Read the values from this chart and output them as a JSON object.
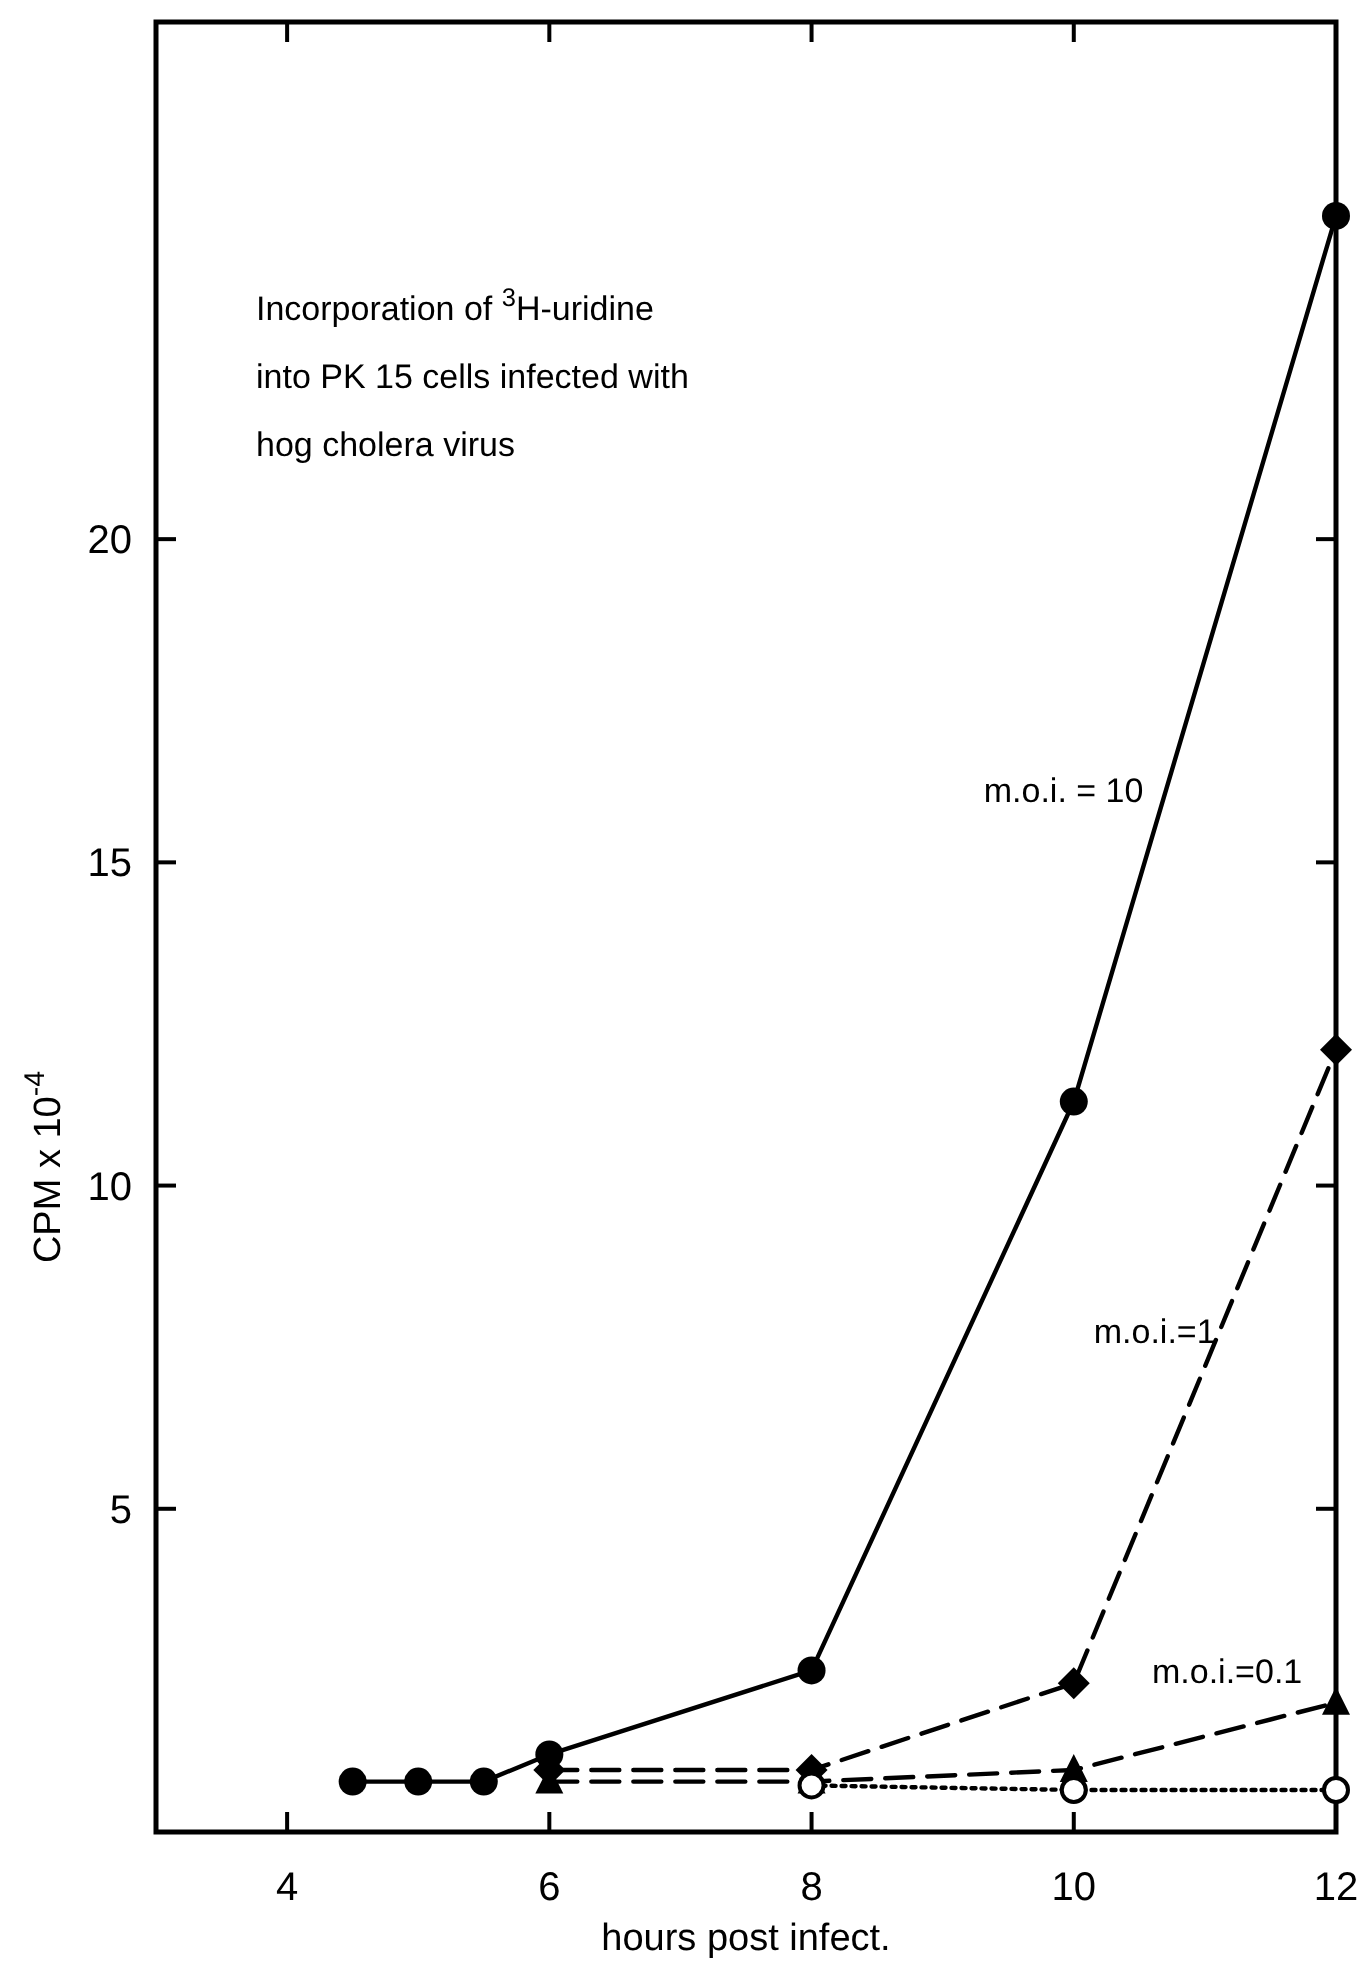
{
  "chart_data": {
    "type": "line",
    "title": "Incorporation of $^{3}$H-uridine\ninto PK 15 cells infected with\nhog cholera virus",
    "xlabel": "hours post infect.",
    "ylabel": "CPM x 10$^{-4}$",
    "xlim": [
      3,
      12
    ],
    "ylim": [
      0,
      28
    ],
    "xticks": [
      4,
      6,
      8,
      10,
      12
    ],
    "yticks": [
      5,
      10,
      15,
      20
    ],
    "grid": false,
    "series": [
      {
        "name": "m.o.i. = 10",
        "color": "#000000",
        "marker": "circle",
        "line_style": "solid",
        "x": [
          4.5,
          5,
          5.5,
          6,
          8,
          10,
          12
        ],
        "values": [
          0.78,
          0.78,
          0.78,
          1.2,
          2.5,
          11.3,
          25.0
        ]
      },
      {
        "name": "m.o.i.=1",
        "color": "#000000",
        "marker": "diamond",
        "line_style": "dashed",
        "x": [
          6,
          8,
          10,
          12
        ],
        "values": [
          0.96,
          0.96,
          2.3,
          12.1
        ]
      },
      {
        "name": "m.o.i.=0.1",
        "color": "#000000",
        "marker": "triangle",
        "line_style": "dashed",
        "x": [
          6,
          8,
          10,
          12
        ],
        "values": [
          0.78,
          0.78,
          0.96,
          2.0
        ]
      },
      {
        "color": "#000000",
        "marker": "circle",
        "line_style": "dotted",
        "x": [
          8,
          10,
          12
        ],
        "values": [
          0.72,
          0.65,
          0.65
        ]
      }
    ]
  }
}
